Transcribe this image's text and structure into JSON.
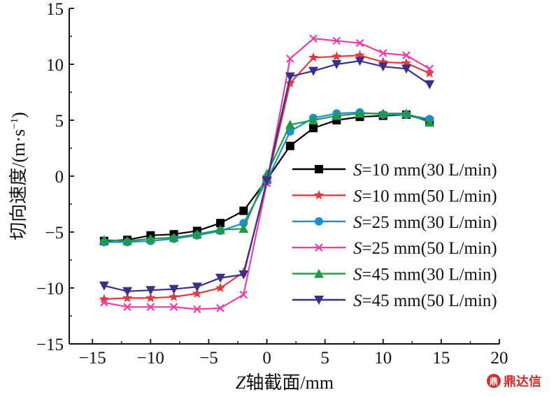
{
  "chart_data": {
    "type": "line",
    "title": "",
    "xlabel_var": "Z",
    "xlabel_rest": "轴截面/mm",
    "ylabel_main": "切向速度/(m·s",
    "ylabel_sup": "−1",
    "ylabel_close": ")",
    "xlim": [
      -17,
      20
    ],
    "ylim": [
      -15,
      15
    ],
    "xticks": [
      -15,
      -10,
      -5,
      0,
      5,
      10,
      15,
      20
    ],
    "yticks": [
      -15,
      -10,
      -5,
      0,
      5,
      10,
      15
    ],
    "xtick_labels": [
      "−15",
      "−10",
      "−5",
      "0",
      "5",
      "10",
      "15",
      "20"
    ],
    "ytick_labels": [
      "−15",
      "−10",
      "−5",
      "0",
      "5",
      "10",
      "15"
    ],
    "grid": false,
    "legend_position": "right",
    "x": [
      -14,
      -12,
      -10,
      -8,
      -6,
      -4,
      -2,
      0,
      2,
      4,
      6,
      8,
      10,
      12,
      14
    ],
    "series": [
      {
        "name_var": "S",
        "name_rest": "=10 mm(30 L/min)",
        "color": "#000000",
        "marker": "square",
        "values": [
          -5.8,
          -5.7,
          -5.3,
          -5.2,
          -4.9,
          -4.2,
          -3.1,
          -0.3,
          2.7,
          4.3,
          5.0,
          5.3,
          5.4,
          5.5,
          4.9
        ]
      },
      {
        "name_var": "S",
        "name_rest": "=10 mm(50 L/min)",
        "color": "#e03a3a",
        "marker": "star",
        "values": [
          -11.0,
          -10.9,
          -10.9,
          -10.8,
          -10.5,
          -10.0,
          -8.6,
          -0.6,
          8.3,
          10.6,
          10.7,
          10.8,
          10.2,
          10.1,
          9.2
        ]
      },
      {
        "name_var": "S",
        "name_rest": "=25 mm(30 L/min)",
        "color": "#1c8fcf",
        "marker": "circle",
        "values": [
          -5.9,
          -5.9,
          -5.8,
          -5.6,
          -5.3,
          -4.9,
          -4.2,
          -0.4,
          4.0,
          5.2,
          5.6,
          5.7,
          5.5,
          5.5,
          5.1
        ]
      },
      {
        "name_var": "S",
        "name_rest": "=25 mm(50 L/min)",
        "color": "#e93fa8",
        "marker": "x",
        "values": [
          -11.3,
          -11.7,
          -11.7,
          -11.7,
          -11.9,
          -11.8,
          -10.6,
          -0.6,
          10.5,
          12.3,
          12.1,
          11.9,
          11.0,
          10.8,
          9.6
        ]
      },
      {
        "name_var": "S",
        "name_rest": "=45 mm(30 L/min)",
        "color": "#1f9a4a",
        "marker": "triangle-up",
        "values": [
          -5.7,
          -5.8,
          -5.6,
          -5.5,
          -5.2,
          -4.8,
          -4.7,
          0.2,
          4.6,
          5.0,
          5.4,
          5.6,
          5.6,
          5.6,
          4.8
        ]
      },
      {
        "name_var": "S",
        "name_rest": "=45 mm(50 L/min)",
        "color": "#3b2f8a",
        "marker": "triangle-down",
        "values": [
          -9.8,
          -10.3,
          -10.2,
          -10.1,
          -9.9,
          -9.1,
          -8.8,
          -0.4,
          8.9,
          9.4,
          10.0,
          10.3,
          9.8,
          9.6,
          8.2
        ]
      }
    ]
  },
  "watermark": {
    "icon": "ding-seal",
    "text": "鼎达信"
  }
}
